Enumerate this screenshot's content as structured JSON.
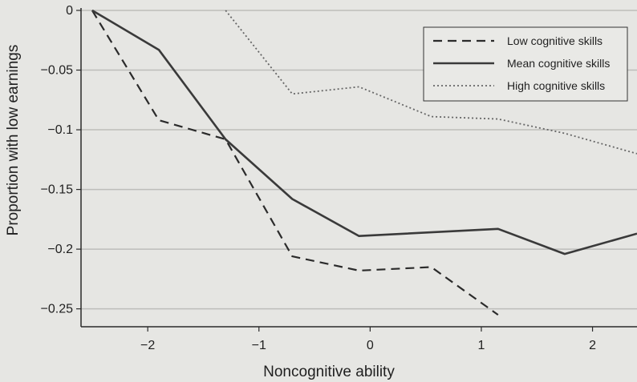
{
  "chart_data": {
    "type": "line",
    "title": "",
    "xlabel": "Noncognitive ability",
    "ylabel": "Proportion with low earnings",
    "xlim": [
      -2.6,
      2.4
    ],
    "ylim": [
      -0.265,
      0.002
    ],
    "xticks": [
      -2,
      -1,
      0,
      1,
      2
    ],
    "xtick_labels": [
      "−2",
      "−1",
      "0",
      "1",
      "2"
    ],
    "yticks": [
      0,
      -0.05,
      -0.1,
      -0.15,
      -0.2,
      -0.25
    ],
    "ytick_labels": [
      "0",
      "−0.05",
      "−0.1",
      "−0.15",
      "−0.2",
      "−0.25"
    ],
    "grid": "horizontal",
    "legend_position": "top-right",
    "series": [
      {
        "name": "Low cognitive skills",
        "style": "dashed",
        "color": "#2b2b2b",
        "x": [
          -2.5,
          -1.9,
          -1.3,
          -0.7,
          -0.1,
          0.55,
          1.15
        ],
        "y": [
          0,
          -0.092,
          -0.108,
          -0.206,
          -0.218,
          -0.215,
          -0.255
        ]
      },
      {
        "name": "Mean cognitive skills",
        "style": "solid",
        "color": "#3a3a3a",
        "x": [
          -2.5,
          -1.9,
          -1.3,
          -0.7,
          -0.1,
          1.15,
          1.75,
          2.4
        ],
        "y": [
          0,
          -0.033,
          -0.108,
          -0.158,
          -0.189,
          -0.183,
          -0.204,
          -0.187
        ]
      },
      {
        "name": "High cognitive skills",
        "style": "dotted",
        "color": "#666666",
        "x": [
          -1.3,
          -0.7,
          -0.1,
          0.55,
          1.15,
          1.75,
          2.4
        ],
        "y": [
          0,
          -0.07,
          -0.064,
          -0.089,
          -0.091,
          -0.103,
          -0.12
        ]
      }
    ]
  }
}
